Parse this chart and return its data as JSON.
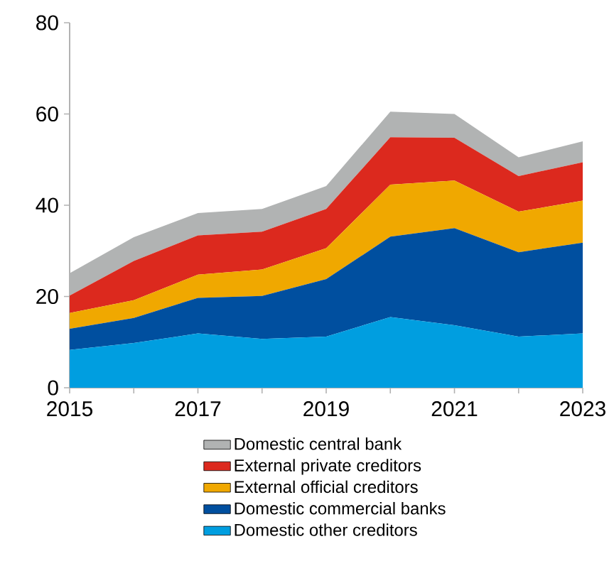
{
  "chart_data": {
    "type": "area",
    "stacked": true,
    "x": [
      2015,
      2016,
      2017,
      2018,
      2019,
      2020,
      2021,
      2022,
      2023
    ],
    "series": [
      {
        "name": "Domestic other creditors",
        "color": "#009ee0",
        "values": [
          8.3,
          9.8,
          11.9,
          10.7,
          11.2,
          15.5,
          13.7,
          11.2,
          11.9
        ]
      },
      {
        "name": "Domestic commercial banks",
        "color": "#004f9f",
        "values": [
          4.6,
          5.5,
          7.8,
          9.4,
          12.6,
          17.6,
          21.3,
          18.5,
          19.9
        ]
      },
      {
        "name": "External official creditors",
        "color": "#f0a800",
        "values": [
          3.5,
          3.9,
          5.1,
          5.8,
          6.8,
          11.4,
          10.4,
          8.9,
          9.2
        ]
      },
      {
        "name": "External private creditors",
        "color": "#dc291e",
        "values": [
          3.8,
          8.6,
          8.6,
          8.3,
          8.6,
          10.4,
          9.4,
          7.8,
          8.4
        ]
      },
      {
        "name": "Domestic central bank",
        "color": "#b1b3b3",
        "values": [
          4.9,
          5.2,
          4.9,
          5.0,
          5.0,
          5.6,
          5.2,
          4.1,
          4.6
        ]
      }
    ],
    "xlim": [
      2015,
      2023
    ],
    "ylim": [
      0,
      80
    ],
    "xticks": [
      2015,
      {
        "value": 2016,
        "label": null
      },
      2017,
      {
        "value": 2018,
        "label": null
      },
      2019,
      {
        "value": 2020,
        "label": null
      },
      2021,
      {
        "value": 2022,
        "label": null
      },
      2023
    ],
    "yticks": [
      0,
      20,
      40,
      60,
      80
    ],
    "legend": "bottom",
    "grid": false
  }
}
